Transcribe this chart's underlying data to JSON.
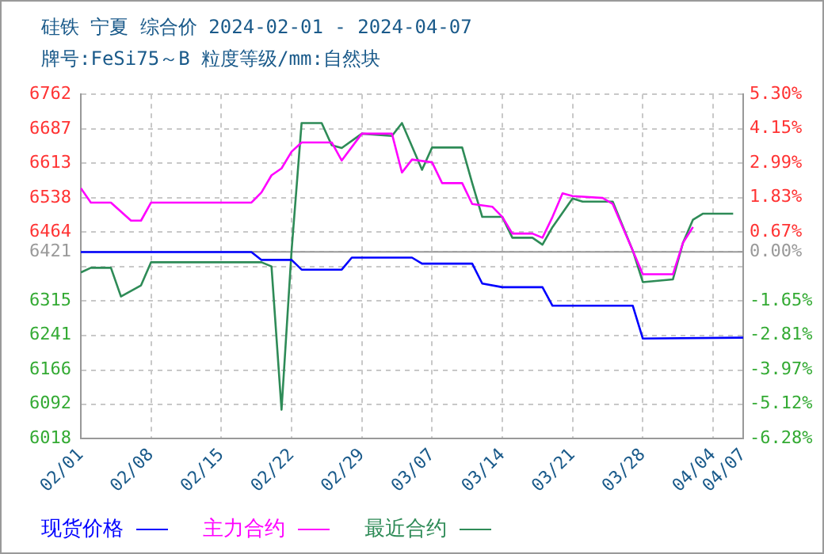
{
  "chart_data": {
    "type": "line",
    "title": "硅铁 宁夏 综合价 2024-02-01 - 2024-04-07",
    "subtitle": "牌号:FeSi75～B 粒度等级/mm:自然块",
    "series": [
      {
        "name": "现货价格",
        "color": "#0000ff",
        "x": [
          "2024-02-01",
          "2024-02-18",
          "2024-02-19",
          "2024-02-22",
          "2024-02-23",
          "2024-02-27",
          "2024-02-28",
          "2024-03-05",
          "2024-03-06",
          "2024-03-11",
          "2024-03-12",
          "2024-03-14",
          "2024-03-18",
          "2024-03-19",
          "2024-03-27",
          "2024-03-28",
          "2024-04-07"
        ],
        "values": [
          6421,
          6421,
          6404,
          6404,
          6383,
          6383,
          6409,
          6409,
          6396,
          6396,
          6353,
          6345,
          6345,
          6305,
          6305,
          6234,
          6236
        ]
      },
      {
        "name": "主力合约",
        "color": "#ff00ff",
        "x": [
          "2024-02-01",
          "2024-02-02",
          "2024-02-04",
          "2024-02-06",
          "2024-02-07",
          "2024-02-08",
          "2024-02-18",
          "2024-02-19",
          "2024-02-20",
          "2024-02-21",
          "2024-02-22",
          "2024-02-23",
          "2024-02-26",
          "2024-02-27",
          "2024-02-29",
          "2024-03-03",
          "2024-03-04",
          "2024-03-05",
          "2024-03-07",
          "2024-03-08",
          "2024-03-10",
          "2024-03-11",
          "2024-03-13",
          "2024-03-14",
          "2024-03-15",
          "2024-03-17",
          "2024-03-18",
          "2024-03-19",
          "2024-03-20",
          "2024-03-21",
          "2024-03-24",
          "2024-03-25",
          "2024-03-27",
          "2024-03-28",
          "2024-03-31",
          "2024-04-01",
          "2024-04-02"
        ],
        "values": [
          6559,
          6528,
          6528,
          6489,
          6489,
          6528,
          6528,
          6550,
          6587,
          6602,
          6638,
          6658,
          6658,
          6619,
          6677,
          6677,
          6593,
          6621,
          6615,
          6570,
          6570,
          6525,
          6519,
          6497,
          6461,
          6461,
          6452,
          6497,
          6548,
          6542,
          6538,
          6525,
          6424,
          6373,
          6373,
          6441,
          6475
        ]
      },
      {
        "name": "最近合约",
        "color": "#2e8b57",
        "x": [
          "2024-02-01",
          "2024-02-02",
          "2024-02-04",
          "2024-02-05",
          "2024-02-07",
          "2024-02-08",
          "2024-02-19",
          "2024-02-20",
          "2024-02-21",
          "2024-02-22",
          "2024-02-23",
          "2024-02-25",
          "2024-02-26",
          "2024-02-27",
          "2024-02-29",
          "2024-03-03",
          "2024-03-04",
          "2024-03-06",
          "2024-03-07",
          "2024-03-10",
          "2024-03-11",
          "2024-03-12",
          "2024-03-14",
          "2024-03-15",
          "2024-03-17",
          "2024-03-18",
          "2024-03-19",
          "2024-03-21",
          "2024-03-22",
          "2024-03-25",
          "2024-03-27",
          "2024-03-28",
          "2024-03-31",
          "2024-04-01",
          "2024-04-02",
          "2024-04-03",
          "2024-04-06"
        ],
        "values": [
          6377,
          6387,
          6387,
          6325,
          6349,
          6399,
          6399,
          6390,
          6080,
          6424,
          6700,
          6700,
          6652,
          6646,
          6677,
          6672,
          6700,
          6599,
          6647,
          6647,
          6570,
          6497,
          6497,
          6452,
          6452,
          6437,
          6475,
          6537,
          6530,
          6530,
          6424,
          6356,
          6362,
          6441,
          6491,
          6504,
          6504
        ]
      }
    ],
    "xlim": [
      "2024-02-01",
      "2024-04-07"
    ],
    "xticks": [
      {
        "value": "2024-02-01",
        "label": "02/01"
      },
      {
        "value": "2024-02-08",
        "label": "02/08"
      },
      {
        "value": "2024-02-15",
        "label": "02/15"
      },
      {
        "value": "2024-02-22",
        "label": "02/22"
      },
      {
        "value": "2024-02-29",
        "label": "02/29"
      },
      {
        "value": "2024-03-07",
        "label": "03/07"
      },
      {
        "value": "2024-03-14",
        "label": "03/14"
      },
      {
        "value": "2024-03-21",
        "label": "03/21"
      },
      {
        "value": "2024-03-28",
        "label": "03/28"
      },
      {
        "value": "2024-04-04",
        "label": "04/04"
      },
      {
        "value": "2024-04-07",
        "label": "04/07"
      }
    ],
    "ylim": [
      6018,
      6762
    ],
    "yticks": [
      6018,
      6092,
      6166,
      6241,
      6315,
      {
        "value": 6389,
        "label": null
      },
      6421,
      6464,
      6538,
      6613,
      6687,
      6762
    ],
    "y2lim": [
      -6.28,
      5.3
    ],
    "y2ticks": [
      {
        "value": -6.28,
        "label": "-6.28%"
      },
      {
        "value": -5.12,
        "label": "-5.12%"
      },
      {
        "value": -3.97,
        "label": "-3.97%"
      },
      {
        "value": -2.81,
        "label": "-2.81%"
      },
      {
        "value": -1.65,
        "label": "-1.65%"
      },
      {
        "value": 0,
        "label": "0.00%"
      },
      {
        "value": 0.67,
        "label": "0.67%"
      },
      {
        "value": 1.83,
        "label": "1.83%"
      },
      {
        "value": 2.99,
        "label": "2.99%"
      },
      {
        "value": 4.15,
        "label": "4.15%"
      },
      {
        "value": 5.3,
        "label": "5.30%"
      }
    ],
    "ref_lines": [
      {
        "axis": "y2",
        "value": 0,
        "color": "#999999",
        "line_style": "solid"
      }
    ],
    "grid": true,
    "legend": "bottom",
    "line_style": "solid",
    "marker": "none"
  }
}
